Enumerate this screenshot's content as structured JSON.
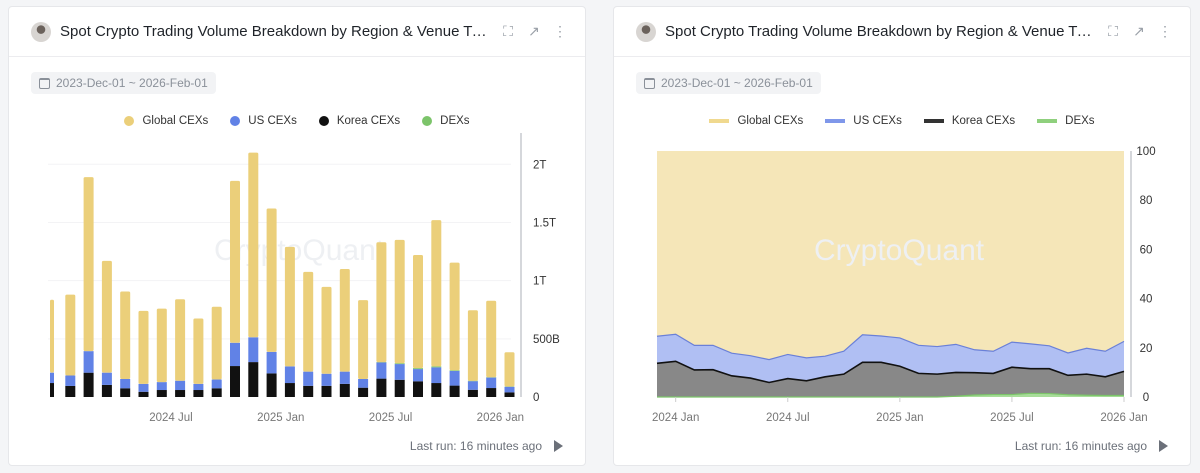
{
  "colors": {
    "global": "#ebcf7a",
    "us": "#6182e6",
    "korea": "#111111",
    "dex": "#7cc46a",
    "global_area": "#f5e6b8",
    "us_area": "#b0bff3",
    "korea_area": "#888888",
    "dex_area": "#a8dd9a"
  },
  "watermark": "CryptoQuant",
  "panels": [
    {
      "title": "Spot Crypto Trading Volume Breakdown by Region & Venue Type",
      "date_range": "2023-Dec-01 ~ 2026-Feb-01",
      "footer": "Last run: 16 minutes ago",
      "icons": [
        "fullscreen-icon",
        "open-external-icon",
        "more-vertical-icon"
      ]
    },
    {
      "title": "Spot Crypto Trading Volume Breakdown by Region & Venue Typ...",
      "date_range": "2023-Dec-01 ~ 2026-Feb-01",
      "footer": "Last run: 16 minutes ago",
      "icons": [
        "fullscreen-icon",
        "open-external-icon",
        "more-vertical-icon"
      ]
    }
  ],
  "legend": [
    "Global CEXs",
    "US CEXs",
    "Korea CEXs",
    "DEXs"
  ],
  "chart_data": [
    {
      "type": "bar",
      "stacked": true,
      "unit": "USD",
      "ylim": [
        0,
        2200000000000.0
      ],
      "yticks": [
        {
          "v": 0,
          "label": "0"
        },
        {
          "v": 500000000000.0,
          "label": "500B"
        },
        {
          "v": 1000000000000.0,
          "label": "1T"
        },
        {
          "v": 1500000000000.0,
          "label": "1.5T"
        },
        {
          "v": 2000000000000.0,
          "label": "2T"
        }
      ],
      "xticks": [
        {
          "i": 7,
          "label": "2024 Jul"
        },
        {
          "i": 13,
          "label": "2025 Jan"
        },
        {
          "i": 19,
          "label": "2025 Jul"
        },
        {
          "i": 25,
          "label": "2026 Jan"
        }
      ],
      "categories": [
        "2023-12",
        "2024-01",
        "2024-02",
        "2024-03",
        "2024-04",
        "2024-05",
        "2024-06",
        "2024-07",
        "2024-08",
        "2024-09",
        "2024-10",
        "2024-11",
        "2024-12",
        "2025-01",
        "2025-02",
        "2025-03",
        "2025-04",
        "2025-05",
        "2025-06",
        "2025-07",
        "2025-08",
        "2025-09",
        "2025-10",
        "2025-11",
        "2025-12",
        "2026-01"
      ],
      "legend_position": "top",
      "series": [
        {
          "name": "Korea CEXs",
          "values_B": [
            120,
            95,
            209,
            104,
            75,
            45,
            60,
            60,
            60,
            75,
            266,
            300,
            203,
            120,
            96,
            96,
            113,
            80,
            158,
            148,
            135,
            120,
            98,
            62,
            77,
            40
          ]
        },
        {
          "name": "US CEXs",
          "values_B": [
            89,
            90,
            185,
            105,
            80,
            68,
            68,
            80,
            53,
            75,
            200,
            213,
            185,
            143,
            122,
            104,
            105,
            75,
            139,
            135,
            105,
            135,
            126,
            74,
            90,
            48
          ]
        },
        {
          "name": "DEXs",
          "values_B": [
            0,
            0,
            0,
            0,
            0,
            0,
            0,
            0,
            0,
            0,
            0,
            0,
            0,
            0,
            0,
            0,
            0,
            0,
            3,
            7,
            8,
            8,
            6,
            4,
            3,
            2
          ]
        },
        {
          "name": "Global CEXs",
          "values_B": [
            627,
            695,
            1496,
            961,
            752,
            627,
            632,
            700,
            562,
            626,
            1391,
            1587,
            1232,
            1027,
            857,
            746,
            882,
            678,
            1030,
            1060,
            972,
            1257,
            925,
            606,
            657,
            295
          ]
        }
      ]
    },
    {
      "type": "area",
      "stacked": true,
      "unit": "%",
      "ylim": [
        0,
        100
      ],
      "yticks": [
        0,
        20,
        40,
        60,
        80,
        100
      ],
      "xticks": [
        {
          "i": 1,
          "label": "2024 Jan"
        },
        {
          "i": 7,
          "label": "2024 Jul"
        },
        {
          "i": 13,
          "label": "2025 Jan"
        },
        {
          "i": 19,
          "label": "2025 Jul"
        },
        {
          "i": 25,
          "label": "2026 Jan"
        }
      ],
      "categories": [
        "2023-12",
        "2024-01",
        "2024-02",
        "2024-03",
        "2024-04",
        "2024-05",
        "2024-06",
        "2024-07",
        "2024-08",
        "2024-09",
        "2024-10",
        "2024-11",
        "2024-12",
        "2025-01",
        "2025-02",
        "2025-03",
        "2025-04",
        "2025-05",
        "2025-06",
        "2025-07",
        "2025-08",
        "2025-09",
        "2025-10",
        "2025-11",
        "2025-12",
        "2026-01"
      ],
      "legend_position": "top",
      "series": [
        {
          "name": "DEXs",
          "values": [
            0,
            0,
            0,
            0,
            0,
            0,
            0,
            0,
            0,
            0,
            0,
            0,
            0,
            0,
            0,
            0,
            0.3,
            0.8,
            1,
            1,
            1.5,
            1.4,
            0.9,
            0.7,
            0.6,
            0.6
          ]
        },
        {
          "name": "Korea CEXs",
          "values": [
            13.7,
            14.5,
            11,
            11.1,
            8.6,
            7.7,
            5.9,
            7.5,
            6.6,
            8.2,
            9.3,
            14.1,
            14.1,
            12.5,
            9.6,
            9.3,
            9.7,
            9.1,
            8.6,
            11.1,
            10,
            10.1,
            7.9,
            8.6,
            7.6,
            9.8
          ]
        },
        {
          "name": "US CEXs",
          "values": [
            11,
            11,
            10,
            9.9,
            9.2,
            9.1,
            9.3,
            9.8,
            9.3,
            8.4,
            9.3,
            11.2,
            10.7,
            11.5,
            11.4,
            11.2,
            11.4,
            9.3,
            9,
            10.2,
            10.1,
            9.3,
            9.1,
            10.5,
            10.4,
            12.2
          ]
        },
        {
          "name": "Global CEXs",
          "values": [
            75.3,
            74.5,
            79,
            79,
            82.2,
            83.2,
            84.8,
            82.7,
            84.1,
            83.4,
            81.4,
            74.7,
            75.2,
            76,
            79,
            79.5,
            78.6,
            80.8,
            81.4,
            77.7,
            78.4,
            79.2,
            82.1,
            80.2,
            81.4,
            77.4
          ]
        }
      ]
    }
  ]
}
